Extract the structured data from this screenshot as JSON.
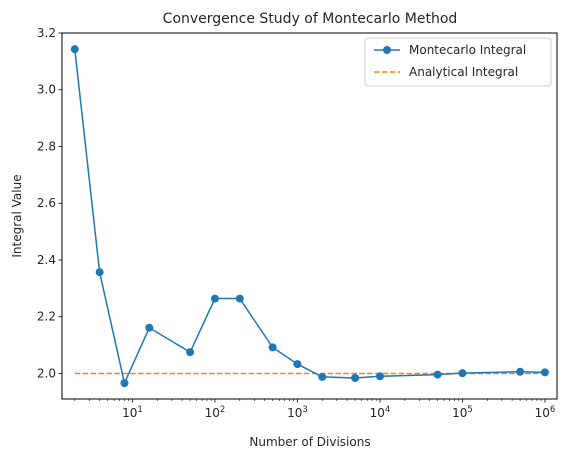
{
  "chart_data": {
    "type": "line",
    "title": "Convergence Study of Montecarlo Method",
    "xlabel": "Number of Divisions",
    "ylabel": "Integral Value",
    "xscale": "log",
    "xlim": [
      1.4,
      1400000
    ],
    "ylim": [
      1.91,
      3.2
    ],
    "grid": false,
    "legend_position": "top-right",
    "x_ticks": [
      {
        "base": "10",
        "exp": "1",
        "value": 10
      },
      {
        "base": "10",
        "exp": "2",
        "value": 100
      },
      {
        "base": "10",
        "exp": "3",
        "value": 1000
      },
      {
        "base": "10",
        "exp": "4",
        "value": 10000
      },
      {
        "base": "10",
        "exp": "5",
        "value": 100000
      },
      {
        "base": "10",
        "exp": "6",
        "value": 1000000
      }
    ],
    "y_ticks": [
      {
        "label": "2.0",
        "value": 2.0
      },
      {
        "label": "2.2",
        "value": 2.2
      },
      {
        "label": "2.4",
        "value": 2.4
      },
      {
        "label": "2.6",
        "value": 2.6
      },
      {
        "label": "2.8",
        "value": 2.8
      },
      {
        "label": "3.0",
        "value": 3.0
      },
      {
        "label": "3.2",
        "value": 3.2
      }
    ],
    "series": [
      {
        "name": "Montecarlo Integral",
        "style": "line-marker",
        "color": "#1f77b4",
        "x": [
          2,
          4,
          8,
          16,
          50,
          100,
          200,
          500,
          1000,
          2000,
          5000,
          10000,
          50000,
          100000,
          500000,
          1000000
        ],
        "y": [
          3.143,
          2.357,
          1.966,
          2.161,
          2.075,
          2.264,
          2.264,
          2.092,
          2.033,
          1.988,
          1.984,
          1.99,
          1.996,
          2.001,
          2.006,
          2.004
        ]
      },
      {
        "name": "Analytical Integral",
        "style": "dashed",
        "color": "#ff7f0e",
        "x": [
          2,
          1000000
        ],
        "y": [
          2.0,
          2.0
        ]
      }
    ]
  }
}
